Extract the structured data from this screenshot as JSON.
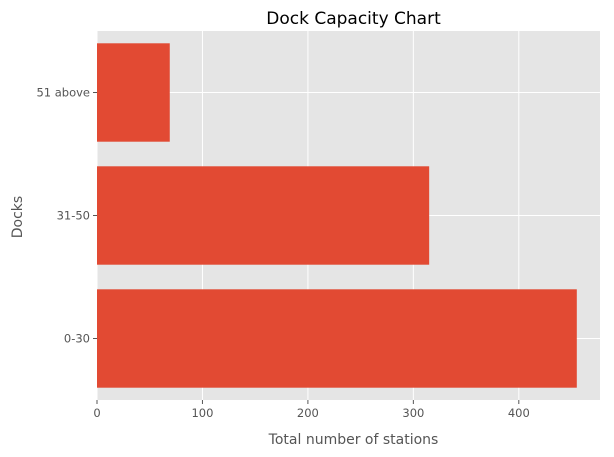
{
  "chart_data": {
    "type": "bar",
    "orientation": "horizontal",
    "title": "Dock Capacity Chart",
    "xlabel": "Total number of stations",
    "ylabel": "Docks",
    "categories": [
      "0-30",
      "31-50",
      "51 above"
    ],
    "values": [
      455,
      315,
      69
    ],
    "xlim": [
      0,
      477
    ],
    "xticks": [
      0,
      100,
      200,
      300,
      400
    ],
    "grid": true,
    "legend": "none",
    "colors": {
      "bar": "#E24A33",
      "plot_background": "#E5E5E5",
      "grid": "#FFFFFF"
    }
  }
}
